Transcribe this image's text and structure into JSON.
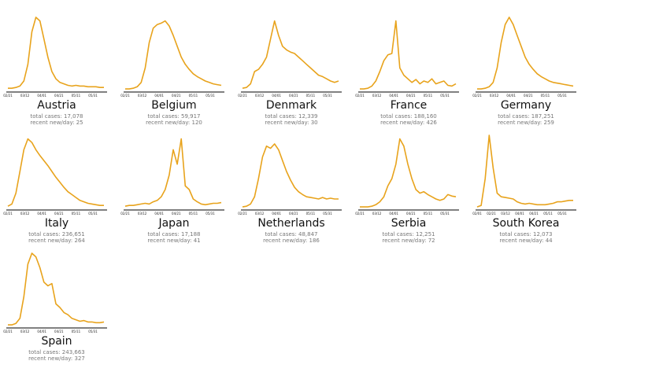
{
  "chart_data": [
    {
      "type": "line",
      "title": "Austria",
      "total_cases": "total cases: 17,078",
      "recent": "recent new/day: 25",
      "color": "#e8a31c",
      "ylim": [
        0,
        100
      ],
      "xtick_labels": [
        "02/21",
        "03/12",
        "04/01",
        "04/21",
        "05/11",
        "05/31"
      ],
      "values": [
        2,
        2,
        3,
        5,
        12,
        35,
        80,
        100,
        95,
        70,
        45,
        25,
        15,
        10,
        8,
        6,
        5,
        6,
        5,
        5,
        4,
        4,
        4,
        3,
        3
      ]
    },
    {
      "type": "line",
      "title": "Belgium",
      "total_cases": "total cases: 59,917",
      "recent": "recent new/day: 120",
      "color": "#e8a31c",
      "ylim": [
        0,
        100
      ],
      "xtick_labels": [
        "02/21",
        "03/12",
        "04/01",
        "04/21",
        "05/11",
        "05/31"
      ],
      "values": [
        1,
        1,
        2,
        4,
        10,
        30,
        65,
        85,
        90,
        92,
        95,
        88,
        75,
        60,
        45,
        35,
        28,
        22,
        18,
        15,
        12,
        10,
        8,
        7,
        6
      ]
    },
    {
      "type": "line",
      "title": "Denmark",
      "total_cases": "total cases: 12,339",
      "recent": "recent new/day: 30",
      "color": "#e8a31c",
      "ylim": [
        0,
        100
      ],
      "xtick_labels": [
        "02/21",
        "03/12",
        "04/01",
        "04/21",
        "05/11",
        "05/31"
      ],
      "values": [
        2,
        3,
        8,
        25,
        28,
        35,
        45,
        70,
        95,
        75,
        60,
        55,
        52,
        50,
        45,
        40,
        35,
        30,
        25,
        20,
        18,
        15,
        12,
        10,
        12
      ]
    },
    {
      "type": "line",
      "title": "France",
      "total_cases": "total cases: 188,160",
      "recent": "recent new/day: 426",
      "color": "#e8a31c",
      "ylim": [
        0,
        100
      ],
      "xtick_labels": [
        "02/21",
        "03/12",
        "04/01",
        "04/21",
        "05/11",
        "05/31"
      ],
      "values": [
        1,
        1,
        2,
        5,
        12,
        25,
        40,
        48,
        50,
        95,
        30,
        20,
        15,
        10,
        14,
        8,
        12,
        10,
        15,
        8,
        10,
        12,
        6,
        5,
        8
      ]
    },
    {
      "type": "line",
      "title": "Germany",
      "total_cases": "total cases: 187,251",
      "recent": "recent new/day: 259",
      "color": "#e8a31c",
      "ylim": [
        0,
        100
      ],
      "xtick_labels": [
        "02/21",
        "03/12",
        "04/01",
        "04/21",
        "05/11",
        "05/31"
      ],
      "values": [
        1,
        1,
        2,
        4,
        10,
        30,
        65,
        90,
        100,
        90,
        75,
        60,
        45,
        35,
        28,
        22,
        18,
        15,
        12,
        10,
        9,
        8,
        7,
        6,
        5
      ]
    },
    {
      "type": "line",
      "title": "Italy",
      "total_cases": "total cases: 236,651",
      "recent": "recent new/day: 264",
      "color": "#e8a31c",
      "ylim": [
        0,
        100
      ],
      "xtick_labels": [
        "02/21",
        "03/12",
        "04/01",
        "04/21",
        "05/11",
        "05/31"
      ],
      "values": [
        2,
        5,
        20,
        50,
        80,
        95,
        90,
        80,
        72,
        65,
        58,
        50,
        42,
        35,
        28,
        22,
        18,
        14,
        10,
        8,
        6,
        5,
        4,
        3,
        3
      ]
    },
    {
      "type": "line",
      "title": "Japan",
      "total_cases": "total cases: 17,188",
      "recent": "recent new/day: 41",
      "color": "#e8a31c",
      "ylim": [
        0,
        100
      ],
      "xtick_labels": [
        "02/21",
        "03/12",
        "04/01",
        "04/21",
        "05/11",
        "05/31"
      ],
      "values": [
        2,
        3,
        3,
        4,
        5,
        6,
        5,
        8,
        10,
        15,
        25,
        45,
        80,
        60,
        95,
        30,
        25,
        12,
        8,
        5,
        4,
        5,
        6,
        6,
        7
      ]
    },
    {
      "type": "line",
      "title": "Netherlands",
      "total_cases": "total cases: 48,847",
      "recent": "recent new/day: 186",
      "color": "#e8a31c",
      "ylim": [
        0,
        100
      ],
      "xtick_labels": [
        "02/21",
        "03/12",
        "04/01",
        "04/21",
        "05/11",
        "05/31"
      ],
      "values": [
        1,
        2,
        5,
        15,
        40,
        70,
        85,
        82,
        88,
        80,
        65,
        50,
        38,
        28,
        22,
        18,
        15,
        14,
        13,
        12,
        14,
        12,
        13,
        12,
        12
      ]
    },
    {
      "type": "line",
      "title": "Serbia",
      "total_cases": "total cases: 12,251",
      "recent": "recent new/day: 72",
      "color": "#e8a31c",
      "ylim": [
        0,
        100
      ],
      "xtick_labels": [
        "02/21",
        "03/12",
        "04/01",
        "04/21",
        "05/11",
        "05/31"
      ],
      "values": [
        1,
        1,
        1,
        2,
        4,
        8,
        15,
        30,
        40,
        60,
        95,
        85,
        60,
        40,
        25,
        20,
        22,
        18,
        15,
        12,
        10,
        12,
        18,
        16,
        15
      ]
    },
    {
      "type": "line",
      "title": "South Korea",
      "total_cases": "total cases: 12,073",
      "recent": "recent new/day: 44",
      "color": "#e8a31c",
      "ylim": [
        0,
        100
      ],
      "xtick_labels": [
        "02/01",
        "02/21",
        "03/12",
        "04/01",
        "04/21",
        "05/11",
        "05/31"
      ],
      "values": [
        1,
        3,
        40,
        100,
        55,
        20,
        15,
        14,
        13,
        12,
        8,
        6,
        5,
        6,
        5,
        4,
        4,
        4,
        5,
        6,
        8,
        8,
        9,
        10,
        10
      ]
    },
    {
      "type": "line",
      "title": "Spain",
      "total_cases": "total cases: 243,663",
      "recent": "recent new/day: 327",
      "color": "#e8a31c",
      "ylim": [
        0,
        100
      ],
      "xtick_labels": [
        "02/21",
        "03/12",
        "04/01",
        "04/21",
        "05/11",
        "05/31"
      ],
      "values": [
        1,
        1,
        3,
        10,
        40,
        85,
        100,
        95,
        80,
        60,
        55,
        58,
        30,
        25,
        18,
        15,
        10,
        8,
        6,
        7,
        5,
        5,
        4,
        4,
        5
      ]
    }
  ]
}
